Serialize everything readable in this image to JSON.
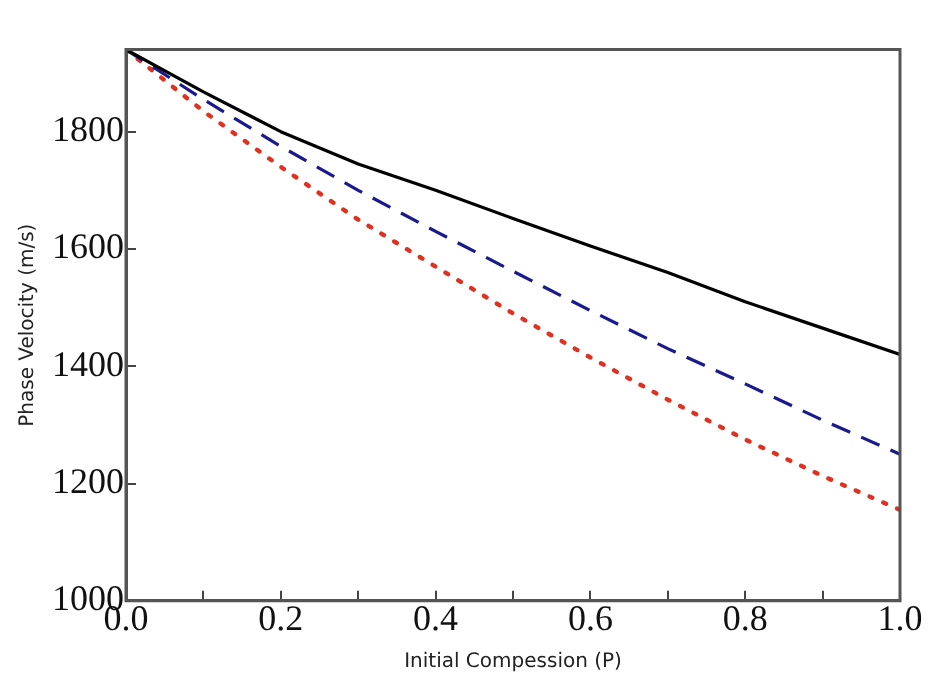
{
  "chart_data": {
    "type": "line",
    "xlabel": "Initial Compession (P)",
    "ylabel": "Phase Velocity (m/s)",
    "x": [
      0,
      0.1,
      0.2,
      0.3,
      0.4,
      0.5,
      0.6,
      0.7,
      0.8,
      0.9,
      1.0
    ],
    "series": [
      {
        "color": "#000000",
        "line_style": "solid",
        "values": [
          1940,
          1868,
          1800,
          1745,
          1700,
          1652,
          1605,
          1560,
          1510,
          1465,
          1420
        ]
      },
      {
        "color": "#1a1a8c",
        "line_style": "dashed",
        "values": [
          1940,
          1855,
          1775,
          1700,
          1630,
          1562,
          1495,
          1430,
          1370,
          1308,
          1250
        ]
      },
      {
        "color": "#e03020",
        "line_style": "dotted",
        "values": [
          1940,
          1835,
          1740,
          1650,
          1570,
          1490,
          1415,
          1343,
          1275,
          1213,
          1155
        ]
      }
    ],
    "xlim": [
      0,
      1.0
    ],
    "xticks": [
      {
        "value": 0,
        "label": "0.0"
      },
      {
        "value": 0.1,
        "label": null
      },
      {
        "value": 0.2,
        "label": "0.2"
      },
      {
        "value": 0.3,
        "label": null
      },
      {
        "value": 0.4,
        "label": "0.4"
      },
      {
        "value": 0.5,
        "label": null
      },
      {
        "value": 0.6,
        "label": "0.6"
      },
      {
        "value": 0.7,
        "label": null
      },
      {
        "value": 0.8,
        "label": "0.8"
      },
      {
        "value": 0.9,
        "label": null
      },
      {
        "value": 1.0,
        "label": "1.0"
      }
    ],
    "ylim": [
      1000,
      1940
    ],
    "yticks": [
      1000,
      1200,
      1400,
      1600,
      1800
    ],
    "grid": false,
    "legend": false,
    "marker": "none"
  }
}
